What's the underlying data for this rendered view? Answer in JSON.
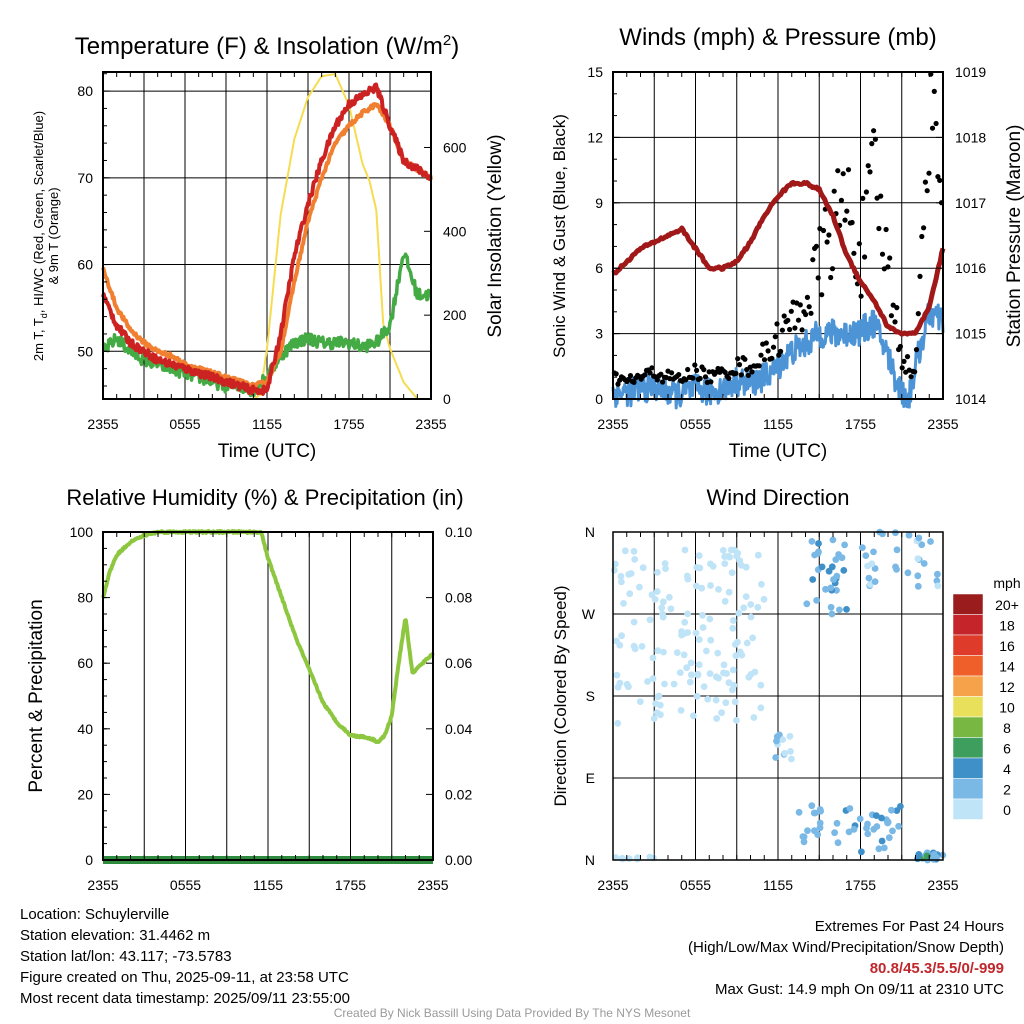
{
  "titles": {
    "temp_title": "Temperature (F) & Insolation (W/m",
    "temp_title_sup": "2",
    "temp_title_end": ")",
    "wind_title": "Winds (mph) & Pressure (mb)",
    "rh_title": "Relative Humidity (%) & Precipitation (in)",
    "dir_title": "Wind Direction"
  },
  "axis_labels": {
    "time": "Time (UTC)",
    "temp_left_1": "2m T, T",
    "temp_left_1_sub": "d",
    "temp_left_1_end": ", HI/WC (Red, Green, Scarlet/Blue)",
    "temp_left_2": "& 9m T (Orange)",
    "solar": "Solar Insolation (Yellow)",
    "wind_left": "Sonic Wind & Gust (Blue, Black)",
    "pressure": "Station Pressure (Maroon)",
    "rh_left": "Percent & Precipitation",
    "dir_left": "Direction (Colored By Speed)",
    "speed_unit": "mph"
  },
  "info": {
    "location": "Location: Schuylerville",
    "elevation": "Station elevation: 31.4462 m",
    "latlon": "Station lat/lon: 43.117; -73.5783",
    "created": "Figure created on Thu, 2025-09-11, at 23:58 UTC",
    "recent": "Most recent data timestamp: 2025/09/11 23:55:00",
    "extremes_1": "Extremes For Past 24 Hours",
    "extremes_2": "(High/Low/Max Wind/Precipitation/Snow Depth)",
    "extremes_values": "80.8/45.3/5.5/0/-999",
    "max_gust": "Max Gust: 14.9 mph On 09/11 at 2310 UTC",
    "credit": "Created By Nick Bassill Using Data Provided By The NYS Mesonet"
  },
  "colors": {
    "temp": "#cc2222",
    "dewpoint": "#44aa44",
    "nine_m_temp": "#f07f30",
    "solar": "#f5dc50",
    "wind": "#4d94d6",
    "gust": "#000000",
    "pressure": "#a01818",
    "rh": "#8dc63f",
    "precip": "#2e8b3e"
  },
  "chart_data": [
    {
      "type": "line",
      "panel": "temperature",
      "title": "Temperature (F) & Insolation (W/m2)",
      "xlabel": "Time (UTC)",
      "x_ticks": [
        "2355",
        "0555",
        "1155",
        "1755",
        "2355"
      ],
      "x_range_hours": [
        0,
        24
      ],
      "ylim": [
        44.5,
        82.2
      ],
      "y_ticks": [
        50,
        60,
        70,
        80
      ],
      "y2lim": [
        0,
        780
      ],
      "y2_ticks": [
        0,
        200,
        400,
        600
      ],
      "series": [
        {
          "name": "2m T (Red)",
          "axis": "left",
          "color": "#cc2222",
          "x": [
            0,
            1,
            2,
            3,
            4,
            5,
            6,
            7,
            8,
            9,
            10,
            11,
            12,
            13,
            14,
            15,
            16,
            17,
            18,
            19,
            20,
            21,
            22,
            23,
            24
          ],
          "y": [
            56.5,
            53,
            51,
            50,
            49,
            48.5,
            48,
            47.5,
            47,
            46.5,
            46,
            45.5,
            45.5,
            52,
            61,
            67,
            72,
            76,
            78.5,
            79.5,
            80.5,
            76,
            72,
            71,
            70
          ]
        },
        {
          "name": "9m T (Orange)",
          "axis": "left",
          "color": "#f07f30",
          "x": [
            0,
            1,
            2,
            3,
            4,
            5,
            6,
            7,
            8,
            9,
            10,
            11,
            12,
            13,
            14,
            15,
            16,
            17,
            18,
            19,
            20,
            21,
            22,
            23,
            24
          ],
          "y": [
            59.5,
            55,
            52.5,
            51,
            50,
            49.5,
            48.5,
            48,
            47.5,
            47,
            46.5,
            46,
            46.5,
            50,
            58,
            65,
            70,
            74,
            76,
            77.5,
            78.5,
            76,
            72,
            71,
            70
          ]
        },
        {
          "name": "Td (Green)",
          "axis": "left",
          "color": "#44aa44",
          "x": [
            0,
            1,
            2,
            3,
            4,
            5,
            6,
            7,
            8,
            9,
            10,
            11,
            12,
            13,
            14,
            15,
            16,
            17,
            18,
            19,
            20,
            21,
            22,
            23,
            24
          ],
          "y": [
            50,
            51.5,
            50,
            49,
            48.5,
            48,
            47.5,
            47,
            46.5,
            46,
            46,
            45.5,
            47,
            49.5,
            51,
            51.5,
            51,
            51,
            51,
            50.5,
            51,
            53,
            61.5,
            56.5,
            56.5
          ]
        },
        {
          "name": "Solar Insolation (Yellow)",
          "axis": "right",
          "color": "#f5dc50",
          "x": [
            0,
            1,
            2,
            3,
            4,
            5,
            6,
            7,
            8,
            9,
            10,
            11,
            11.5,
            12,
            13,
            14,
            15,
            16,
            17,
            18,
            19,
            19.5,
            20,
            20.5,
            21,
            22,
            23,
            24
          ],
          "y": [
            0,
            0,
            0,
            0,
            0,
            0,
            0,
            0,
            0,
            0,
            0,
            0,
            10,
            120,
            440,
            620,
            720,
            770,
            775,
            700,
            560,
            520,
            450,
            180,
            120,
            40,
            0,
            0
          ]
        }
      ]
    },
    {
      "type": "line",
      "panel": "winds",
      "title": "Winds (mph) & Pressure (mb)",
      "xlabel": "Time (UTC)",
      "x_ticks": [
        "2355",
        "0555",
        "1155",
        "1755",
        "2355"
      ],
      "x_range_hours": [
        0,
        24
      ],
      "ylim": [
        0,
        15
      ],
      "y_ticks": [
        0,
        3,
        6,
        9,
        12,
        15
      ],
      "y2lim": [
        1014,
        1019
      ],
      "y2_ticks": [
        1014,
        1015,
        1016,
        1017,
        1018,
        1019
      ],
      "series": [
        {
          "name": "Sonic Wind (Blue)",
          "axis": "left",
          "color": "#4d94d6",
          "x": [
            0,
            1,
            2,
            3,
            4,
            5,
            6,
            7,
            8,
            9,
            10,
            11,
            12,
            13,
            14,
            15,
            16,
            17,
            18,
            19,
            20,
            20.5,
            21,
            21.5,
            22,
            23,
            24
          ],
          "y": [
            0.3,
            0.3,
            0.4,
            0.6,
            0.3,
            0.2,
            0.5,
            0.3,
            0.5,
            0.8,
            0.7,
            1,
            1.5,
            2.2,
            2.5,
            3,
            3,
            3,
            3.1,
            3.5,
            2,
            1,
            0.3,
            0,
            1.5,
            4,
            3.5
          ]
        },
        {
          "name": "Gust (Black)",
          "axis": "left",
          "color": "#000000",
          "x": [
            0,
            1,
            2,
            3,
            4,
            5,
            6,
            7,
            8,
            9,
            10,
            11,
            12,
            13,
            14,
            15,
            16,
            17,
            18,
            19,
            20,
            21,
            22,
            22.7,
            23,
            24
          ],
          "y": [
            1,
            0.8,
            1,
            1.2,
            1,
            0.9,
            1.3,
            1,
            1.2,
            1.5,
            1.5,
            2,
            2.8,
            3.5,
            4.5,
            6,
            8,
            9,
            6.5,
            10,
            6,
            2,
            1,
            10,
            14.9,
            11
          ]
        },
        {
          "name": "Station Pressure (Maroon)",
          "axis": "right",
          "color": "#a01818",
          "x": [
            0,
            1,
            2,
            3,
            4,
            5,
            6,
            7,
            8,
            9,
            10,
            11,
            12,
            13,
            14,
            15,
            16,
            17,
            18,
            19,
            20,
            21,
            22,
            23,
            24
          ],
          "y": [
            1015.9,
            1016.1,
            1016.3,
            1016.4,
            1016.5,
            1016.6,
            1016.3,
            1016.0,
            1016.0,
            1016.1,
            1016.4,
            1016.8,
            1017.1,
            1017.3,
            1017.3,
            1017.2,
            1016.8,
            1016.2,
            1015.8,
            1015.5,
            1015.1,
            1015,
            1015,
            1015.4,
            1016.3
          ]
        }
      ]
    },
    {
      "type": "line",
      "panel": "humidity",
      "title": "Relative Humidity (%) & Precipitation (in)",
      "xlabel": "",
      "x_ticks": [
        "2355",
        "0555",
        "1155",
        "1755",
        "2355"
      ],
      "x_range_hours": [
        0,
        24
      ],
      "ylim": [
        0,
        100
      ],
      "y_ticks": [
        0,
        20,
        40,
        60,
        80,
        100
      ],
      "y2lim": [
        0,
        0.1
      ],
      "y2_ticks": [
        "0.00",
        "0.02",
        "0.04",
        "0.06",
        "0.08",
        "0.10"
      ],
      "series": [
        {
          "name": "Relative Humidity",
          "axis": "left",
          "color": "#8dc63f",
          "x": [
            0,
            0.5,
            1,
            2,
            3,
            4,
            5,
            6,
            7,
            8,
            9,
            10,
            11,
            11.5,
            12,
            13,
            14,
            15,
            16,
            17,
            18,
            19,
            19.5,
            20,
            20.5,
            21,
            21.5,
            22,
            22.5,
            23,
            24
          ],
          "y": [
            80,
            88,
            93,
            97,
            99,
            100,
            100,
            100,
            100,
            100,
            100,
            100,
            100,
            100,
            92,
            80,
            68,
            58,
            48,
            42,
            38,
            37.5,
            37,
            36,
            38,
            44,
            60,
            74,
            57,
            59,
            63
          ]
        },
        {
          "name": "Precipitation",
          "axis": "right",
          "color": "#2e8b3e",
          "x": [
            0,
            24
          ],
          "y": [
            0,
            0
          ]
        }
      ]
    },
    {
      "type": "scatter",
      "panel": "wind_direction",
      "title": "Wind Direction",
      "xlabel": "",
      "x_ticks": [
        "2355",
        "0555",
        "1155",
        "1755",
        "2355"
      ],
      "x_range_hours": [
        0,
        24
      ],
      "y_categories": [
        "N",
        "E",
        "S",
        "W",
        "N"
      ],
      "ylim_degrees": [
        0,
        360
      ],
      "legend": {
        "placement": "right",
        "unit": "mph",
        "labels": [
          "20+",
          "18",
          "16",
          "14",
          "12",
          "10",
          "8",
          "6",
          "4",
          "2",
          "0"
        ],
        "colors": [
          "#9b1c1c",
          "#c4242a",
          "#de3b2b",
          "#ee5f2a",
          "#f6a24a",
          "#e8e05a",
          "#78b842",
          "#3d9e5e",
          "#3f8fc8",
          "#7ab9e6",
          "#bfe3f7"
        ]
      },
      "clusters": [
        {
          "x_range": [
            0,
            11
          ],
          "deg_range": [
            150,
            345
          ],
          "speed_range": [
            0,
            2
          ],
          "count": 150
        },
        {
          "x_range": [
            0,
            3
          ],
          "deg_range": [
            0,
            4
          ],
          "speed_range": [
            0,
            2
          ],
          "count": 8
        },
        {
          "x_range": [
            11.5,
            13
          ],
          "deg_range": [
            110,
            140
          ],
          "speed_range": [
            1,
            3
          ],
          "count": 12
        },
        {
          "x_range": [
            13.5,
            15.5
          ],
          "deg_range": [
            15,
            60
          ],
          "speed_range": [
            2,
            4
          ],
          "count": 14
        },
        {
          "x_range": [
            14,
            17
          ],
          "deg_range": [
            270,
            360
          ],
          "speed_range": [
            2,
            5
          ],
          "count": 30
        },
        {
          "x_range": [
            16,
            21
          ],
          "deg_range": [
            5,
            60
          ],
          "speed_range": [
            2,
            5
          ],
          "count": 30
        },
        {
          "x_range": [
            18,
            24
          ],
          "deg_range": [
            300,
            360
          ],
          "speed_range": [
            1,
            4
          ],
          "count": 30
        },
        {
          "x_range": [
            22,
            24
          ],
          "deg_range": [
            0,
            10
          ],
          "speed_range": [
            2,
            7
          ],
          "count": 18
        }
      ]
    }
  ]
}
